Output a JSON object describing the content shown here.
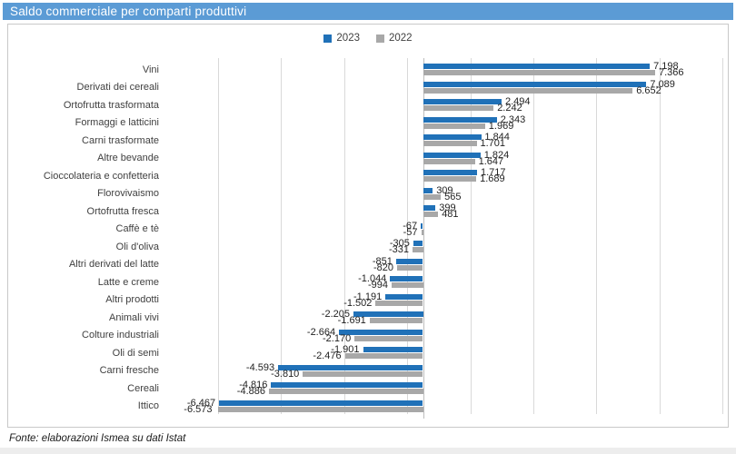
{
  "title": "Saldo commerciale per comparti produttivi",
  "footer": "Fonte: elaborazioni Ismea su dati Istat",
  "colors": {
    "title_bar": "#5b9bd5",
    "series_2023": "#2071b8",
    "series_2022": "#a8a8a8",
    "gridline": "#d9d9d9",
    "zero_axis": "#bdbdbd",
    "chart_border": "#c9c9c9"
  },
  "chart_data": {
    "type": "bar",
    "orientation": "horizontal",
    "title": "Saldo commerciale per comparti produttivi",
    "legend_position": "top",
    "grid": true,
    "xlim": [
      -6500,
      9500
    ],
    "gridline_step": 2000,
    "categories": [
      "Vini",
      "Derivati dei cereali",
      "Ortofrutta trasformata",
      "Formaggi e latticini",
      "Carni trasformate",
      "Altre bevande",
      "Cioccolateria e confetteria",
      "Florovivaismo",
      "Ortofrutta fresca",
      "Caffè e tè",
      "Oli d'oliva",
      "Altri derivati del latte",
      "Latte e creme",
      "Altri prodotti",
      "Animali vivi",
      "Colture industriali",
      "Oli di semi",
      "Carni fresche",
      "Cereali",
      "Ittico"
    ],
    "series": [
      {
        "name": "2023",
        "color": "#2071b8",
        "values": [
          7198,
          7089,
          2494,
          2343,
          1844,
          1824,
          1717,
          309,
          399,
          -67,
          -305,
          -851,
          -1044,
          -1191,
          -2205,
          -2664,
          -1901,
          -4593,
          -4816,
          -6467
        ],
        "labels": [
          "7.198",
          "7.089",
          "2.494",
          "2.343",
          "1.844",
          "1.824",
          "1.717",
          "309",
          "399",
          "-67",
          "-305",
          "-851",
          "-1.044",
          "-1.191",
          "-2.205",
          "-2.664",
          "-1.901",
          "-4.593",
          "-4.816",
          "-6.467"
        ]
      },
      {
        "name": "2022",
        "color": "#a8a8a8",
        "values": [
          7366,
          6652,
          2242,
          1969,
          1701,
          1647,
          1689,
          565,
          481,
          -57,
          -331,
          -820,
          -994,
          -1502,
          -1691,
          -2170,
          -2476,
          -3810,
          -4886,
          -6573
        ],
        "labels": [
          "7.366",
          "6.652",
          "2.242",
          "1.969",
          "1.701",
          "1.647",
          "1.689",
          "565",
          "481",
          "-57",
          "-331",
          "-820",
          "-994",
          "-1.502",
          "-1.691",
          "-2.170",
          "-2.476",
          "-3.810",
          "-4.886",
          "-6.573"
        ]
      }
    ]
  }
}
